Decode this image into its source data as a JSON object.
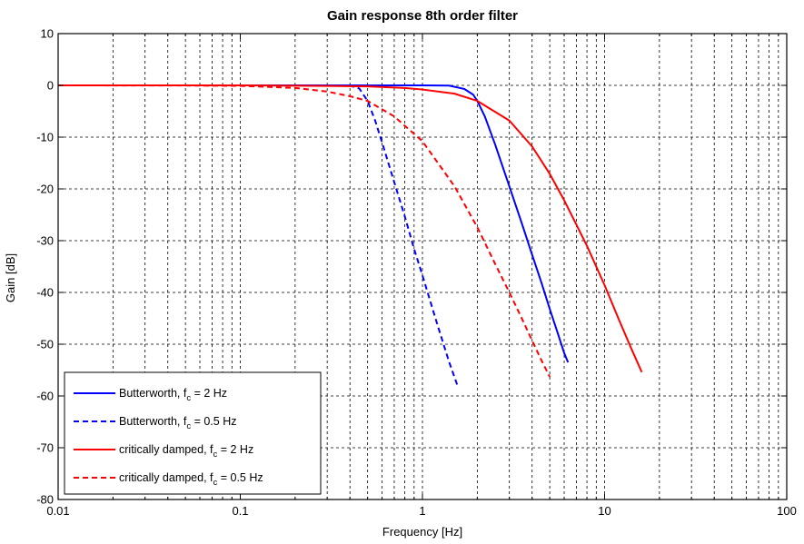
{
  "chart_data": {
    "type": "line",
    "title": "Gain response 8th order filter",
    "xlabel": "Frequency [Hz]",
    "ylabel": "Gain [dB]",
    "xscale": "log",
    "xlim": [
      0.01,
      100
    ],
    "ylim": [
      -80,
      10
    ],
    "x_ticks": [
      0.01,
      0.1,
      1,
      10,
      100
    ],
    "x_tick_labels": [
      "0.01",
      "0.1",
      "1",
      "10",
      "100"
    ],
    "y_ticks": [
      10,
      0,
      -10,
      -20,
      -30,
      -40,
      -50,
      -60,
      -70,
      -80
    ],
    "y_tick_labels": [
      "10",
      "0",
      "-10",
      "-20",
      "-30",
      "-40",
      "-50",
      "-60",
      "-70",
      "-80"
    ],
    "grid": true,
    "legend_position": "bottom-left",
    "series": [
      {
        "name": "Butterworth, f_c = 2 Hz",
        "legend_main": "Butterworth, f",
        "legend_sub": "c",
        "legend_tail": " = 2 Hz",
        "color": "#0000ff",
        "dash": "solid",
        "x": [
          0.01,
          0.1,
          0.5,
          1.0,
          1.4,
          1.7,
          1.9,
          2.0,
          2.2,
          2.5,
          3.0,
          3.5,
          4.0,
          4.5,
          5.0,
          5.5,
          6.0,
          6.3
        ],
        "y": [
          0,
          0,
          0,
          0,
          -0.04,
          -0.7,
          -1.8,
          -3.0,
          -6.0,
          -11.3,
          -19.5,
          -26.5,
          -32.7,
          -38.1,
          -43.2,
          -47.6,
          -51.7,
          -53.5
        ]
      },
      {
        "name": "Butterworth, f_c = 0.5 Hz",
        "legend_main": "Butterworth, f",
        "legend_sub": "c",
        "legend_tail": " = 0.5 Hz",
        "color": "#0000ff",
        "dash": "dashed",
        "x": [
          0.01,
          0.1,
          0.3,
          0.4,
          0.45,
          0.5,
          0.55,
          0.6,
          0.7,
          0.8,
          0.9,
          1.0,
          1.2,
          1.4,
          1.55
        ],
        "y": [
          0,
          0,
          0,
          -0.07,
          -0.6,
          -3.0,
          -6.8,
          -11.0,
          -18.7,
          -25.3,
          -31.6,
          -36.7,
          -45.9,
          -53.4,
          -57.8
        ]
      },
      {
        "name": "critically damped, f_c = 2 Hz",
        "legend_main": "critically damped, f",
        "legend_sub": "c",
        "legend_tail": " = 2 Hz",
        "color": "#ff0000",
        "dash": "solid",
        "x": [
          0.01,
          0.1,
          0.3,
          0.5,
          0.8,
          1.0,
          1.5,
          2.0,
          3.0,
          4.0,
          5.0,
          6.0,
          8.0,
          10.0,
          12.0,
          14.0,
          16.0
        ],
        "y": [
          0,
          -0.01,
          -0.1,
          -0.2,
          -0.5,
          -0.8,
          -1.6,
          -3.0,
          -6.8,
          -11.8,
          -17.1,
          -22.2,
          -31.0,
          -38.6,
          -45.3,
          -50.8,
          -55.4
        ]
      },
      {
        "name": "critically damped, f_c = 0.5 Hz",
        "legend_main": "critically damped, f",
        "legend_sub": "c",
        "legend_tail": " = 0.5 Hz",
        "color": "#ff0000",
        "dash": "dashed",
        "x": [
          0.01,
          0.05,
          0.1,
          0.2,
          0.3,
          0.4,
          0.5,
          0.7,
          1.0,
          1.5,
          2.0,
          2.5,
          3.0,
          3.5,
          4.0,
          4.5,
          5.0
        ],
        "y": [
          0,
          -0.03,
          -0.1,
          -0.5,
          -1.2,
          -2.1,
          -3.0,
          -6.0,
          -10.8,
          -19.5,
          -27.4,
          -34.4,
          -40.0,
          -44.9,
          -49.3,
          -53.1,
          -56.3
        ]
      }
    ]
  }
}
